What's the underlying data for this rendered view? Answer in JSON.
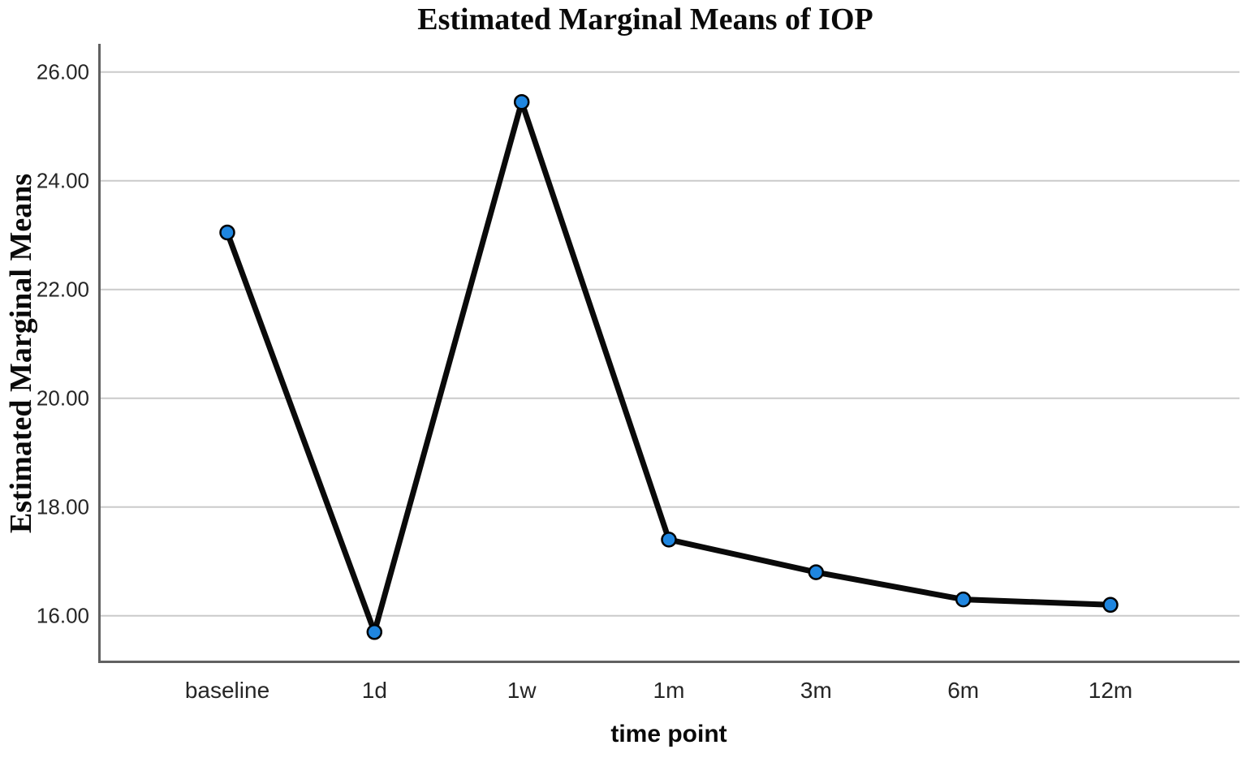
{
  "chart_data": {
    "type": "line",
    "title": "Estimated Marginal Means of IOP",
    "xlabel": "time point",
    "ylabel": "Estimated Marginal Means",
    "categories": [
      "baseline",
      "1d",
      "1w",
      "1m",
      "3m",
      "6m",
      "12m"
    ],
    "series": [
      {
        "name": "Estimated Marginal Means of IOP",
        "values": [
          23.05,
          15.7,
          25.45,
          17.4,
          16.8,
          16.3,
          16.2
        ]
      }
    ],
    "y_ticks": [
      {
        "value": 16,
        "label": "16.00"
      },
      {
        "value": 18,
        "label": "18.00"
      },
      {
        "value": 20,
        "label": "20.00"
      },
      {
        "value": 22,
        "label": "22.00"
      },
      {
        "value": 24,
        "label": "24.00"
      },
      {
        "value": 26,
        "label": "26.00"
      }
    ],
    "ylim": [
      15.13,
      26.52
    ],
    "grid": "horizontal",
    "legend": "none",
    "colors": {
      "line": "#0a0a0a",
      "marker_fill": "#1f86e0",
      "marker_stroke": "#000000",
      "gridline": "#cacaca",
      "axis": "#616161",
      "title_text": "#0a0a0a",
      "tick_text": "#262626",
      "background": "#ffffff"
    }
  }
}
